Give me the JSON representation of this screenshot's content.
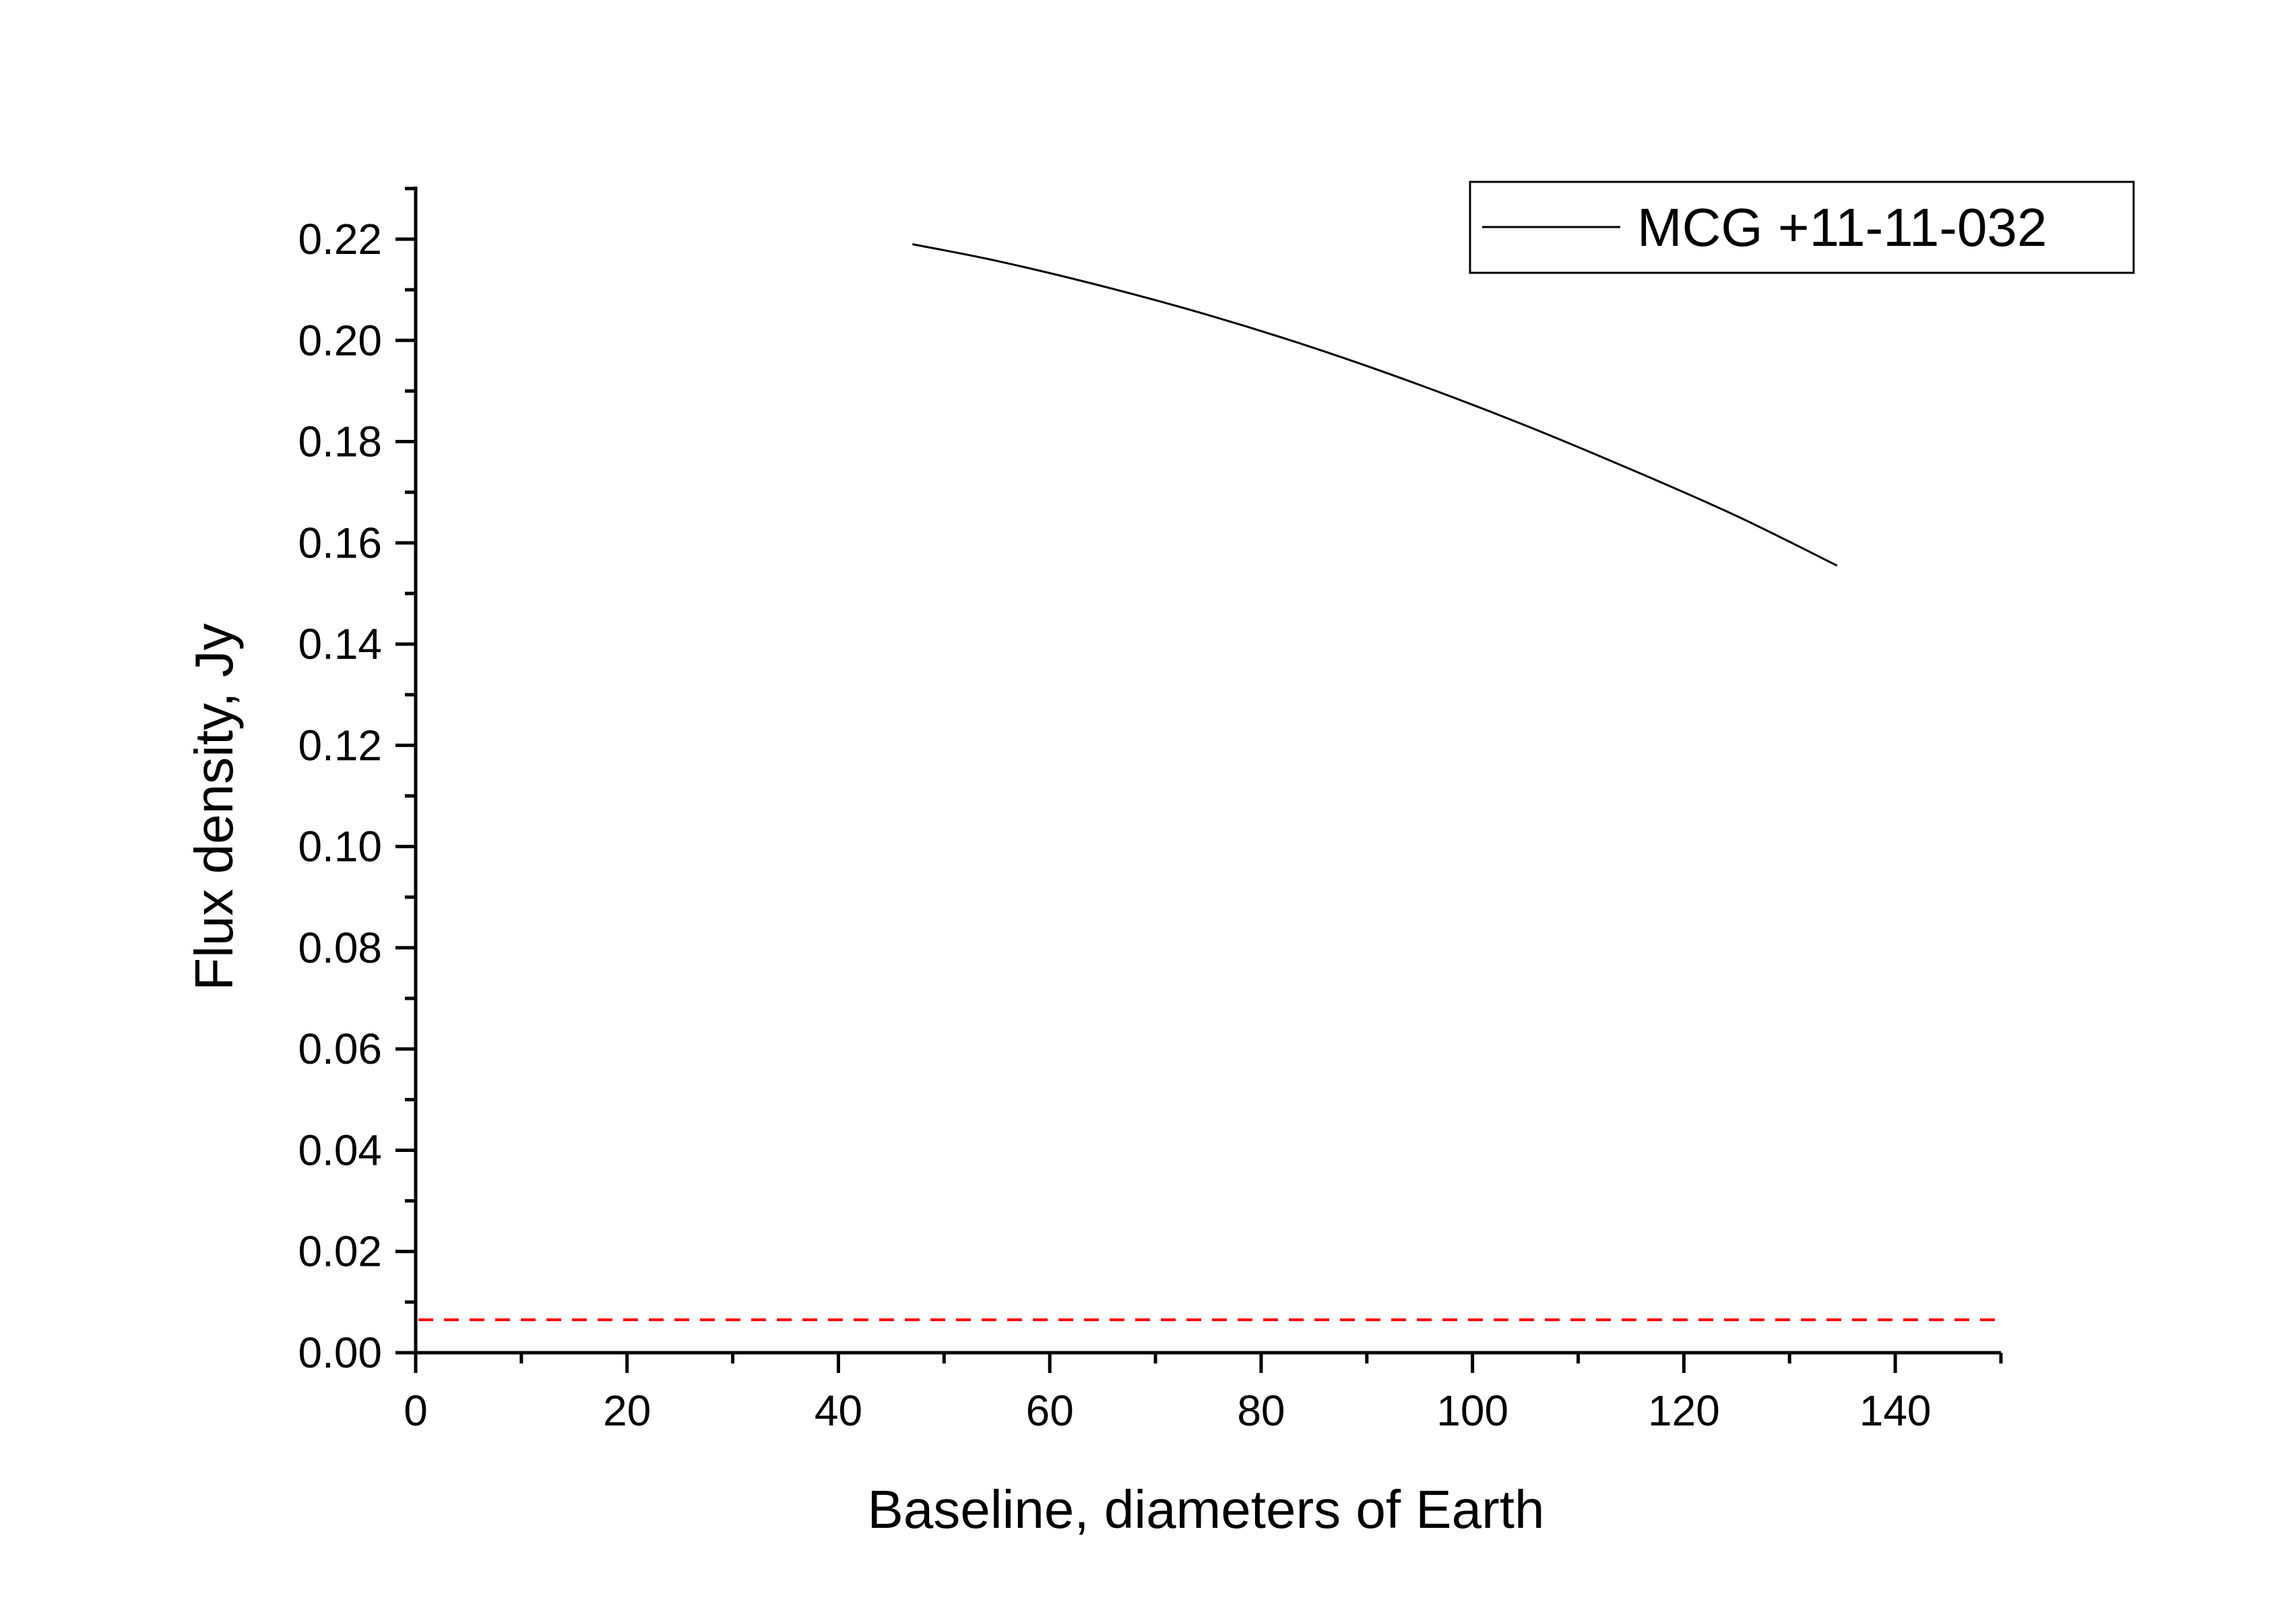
{
  "chart_data": {
    "type": "line",
    "title": "",
    "xlabel": "Baseline, diameters of Earth",
    "ylabel": "Flux density, Jy",
    "xlim": [
      0,
      150
    ],
    "ylim": [
      0,
      0.23
    ],
    "x_ticks": [
      0,
      20,
      40,
      60,
      80,
      100,
      120,
      140
    ],
    "x_tick_labels": [
      "0",
      "20",
      "40",
      "60",
      "80",
      "100",
      "120",
      "140"
    ],
    "y_ticks": [
      0,
      0.02,
      0.04,
      0.06,
      0.08,
      0.1,
      0.12,
      0.14,
      0.16,
      0.18,
      0.2,
      0.22
    ],
    "y_tick_labels": [
      "0.00",
      "0.02",
      "0.04",
      "0.06",
      "0.08",
      "0.10",
      "0.12",
      "0.14",
      "0.16",
      "0.18",
      "0.20",
      "0.22"
    ],
    "grid": false,
    "legend_position": "top-right",
    "series": [
      {
        "name": "MCG +11-11-032",
        "color": "#000000",
        "style": "solid",
        "x": [
          47,
          55,
          65,
          75,
          85,
          95,
          105,
          115,
          125,
          134.5
        ],
        "y": [
          0.219,
          0.2157,
          0.2107,
          0.205,
          0.1985,
          0.1912,
          0.1832,
          0.1745,
          0.1653,
          0.1555
        ]
      }
    ],
    "reference_lines": [
      {
        "orientation": "horizontal",
        "y": 0.0065,
        "color": "#ff0000",
        "style": "dashed"
      }
    ]
  }
}
